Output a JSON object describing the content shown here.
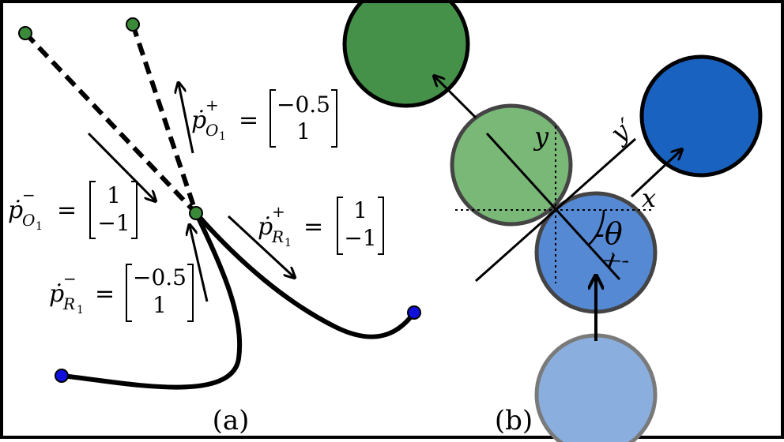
{
  "panels": {
    "a": {
      "label": "(a)"
    },
    "b": {
      "label": "(b)"
    }
  },
  "equations": {
    "pO1_plus": {
      "sym": "ṗ",
      "sup": "+",
      "sub": "O",
      "subsub": "1",
      "equals": "=",
      "vec": [
        "−0.5",
        "1"
      ]
    },
    "pO1_minus": {
      "sym": "ṗ",
      "sup": "−",
      "sub": "O",
      "subsub": "1",
      "equals": "=",
      "vec": [
        "1",
        "−1"
      ]
    },
    "pR1_plus": {
      "sym": "ṗ",
      "sup": "+",
      "sub": "R",
      "subsub": "1",
      "equals": "=",
      "vec": [
        "1",
        "−1"
      ]
    },
    "pR1_minus": {
      "sym": "ṗ",
      "sup": "−",
      "sub": "R",
      "subsub": "1",
      "equals": "=",
      "vec": [
        "−0.5",
        "1"
      ]
    }
  },
  "axes": {
    "x": "x",
    "y": "y",
    "x_prime": "x′",
    "y_prime": "y′",
    "theta": "-θ"
  },
  "colors": {
    "green_dark": "#46914a",
    "green_light": "#7ab878",
    "blue_dark": "#1a62c0",
    "blue_mid": "#5589d3",
    "blue_light": "#8aafdf",
    "point_green": "#3a8a3a",
    "point_blue": "#1010dd"
  }
}
